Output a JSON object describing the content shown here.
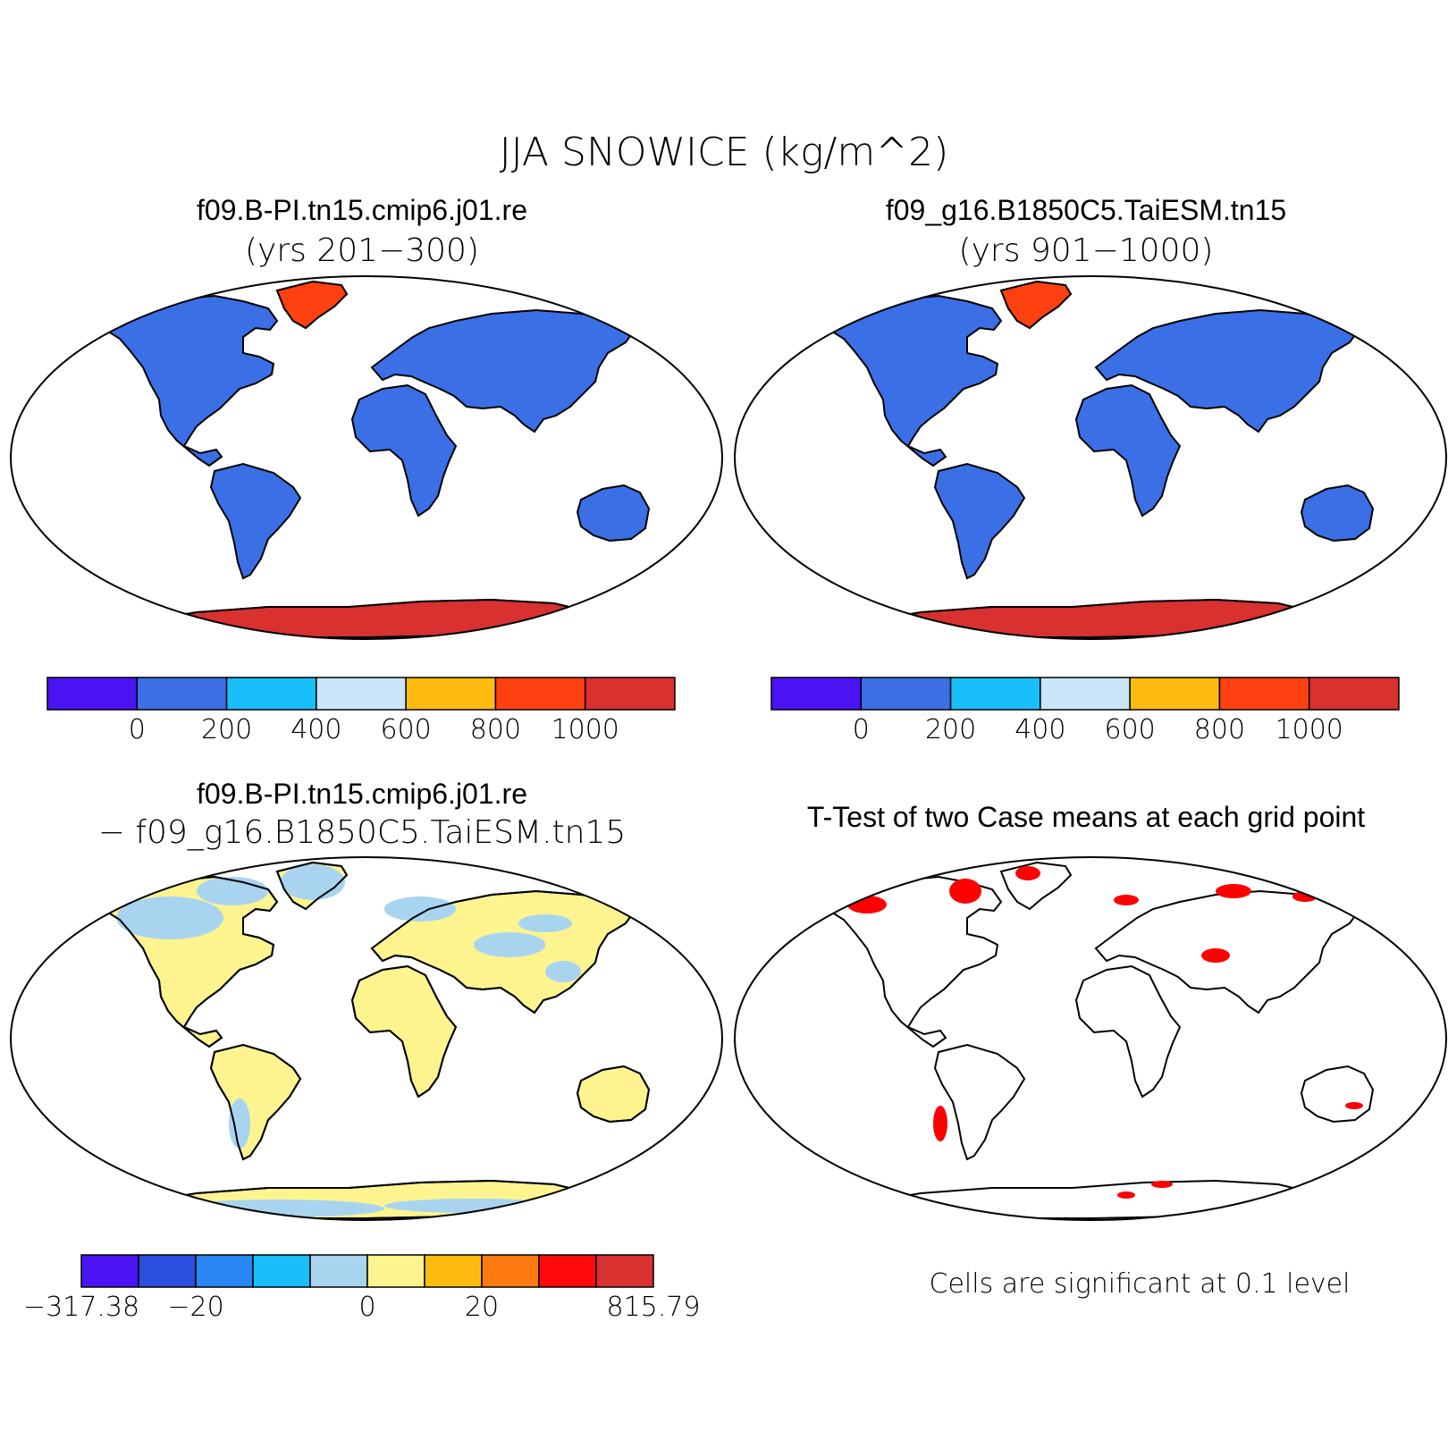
{
  "figure": {
    "title": "JJA SNOWICE (kg/m^2)"
  },
  "colors": {
    "land_base": "#3a6fe6",
    "ice_red": "#d93030",
    "greenland_red": "#ff4010",
    "diff_land": "#fdf490",
    "diff_neg": "#a8d4f0",
    "signif": "#ff0000",
    "coast": "#000000"
  },
  "panels": {
    "tl": {
      "title": "f09.B-PI.tn15.cmip6.j01.re",
      "subtitle": "(yrs 201−300)",
      "colorbar": {
        "colors": [
          "#4a14f5",
          "#3a6fe6",
          "#19bff8",
          "#c8e6f7",
          "#fdbb10",
          "#ff4010",
          "#d93030"
        ],
        "labels": [
          "0",
          "200",
          "400",
          "600",
          "800",
          "1000"
        ]
      }
    },
    "tr": {
      "title": "f09_g16.B1850C5.TaiESM.tn15",
      "subtitle": "(yrs 901−1000)",
      "colorbar": {
        "colors": [
          "#4a14f5",
          "#3a6fe6",
          "#19bff8",
          "#c8e6f7",
          "#fdbb10",
          "#ff4010",
          "#d93030"
        ],
        "labels": [
          "0",
          "200",
          "400",
          "600",
          "800",
          "1000"
        ]
      }
    },
    "bl": {
      "title": "f09.B-PI.tn15.cmip6.j01.re",
      "subtitle": "− f09_g16.B1850C5.TaiESM.tn15",
      "colorbar": {
        "colors": [
          "#4a14f5",
          "#2b4fde",
          "#2a86f2",
          "#19bff8",
          "#a8d4f0",
          "#fdf490",
          "#fdbb10",
          "#ff7a10",
          "#ff0a0a",
          "#d93030"
        ],
        "labels": [
          "−317.38",
          "−20",
          "0",
          "20",
          "815.79"
        ]
      }
    },
    "br": {
      "title": "T-Test of two Case means at each grid point",
      "note": "Cells are significant at 0.1 level"
    }
  }
}
